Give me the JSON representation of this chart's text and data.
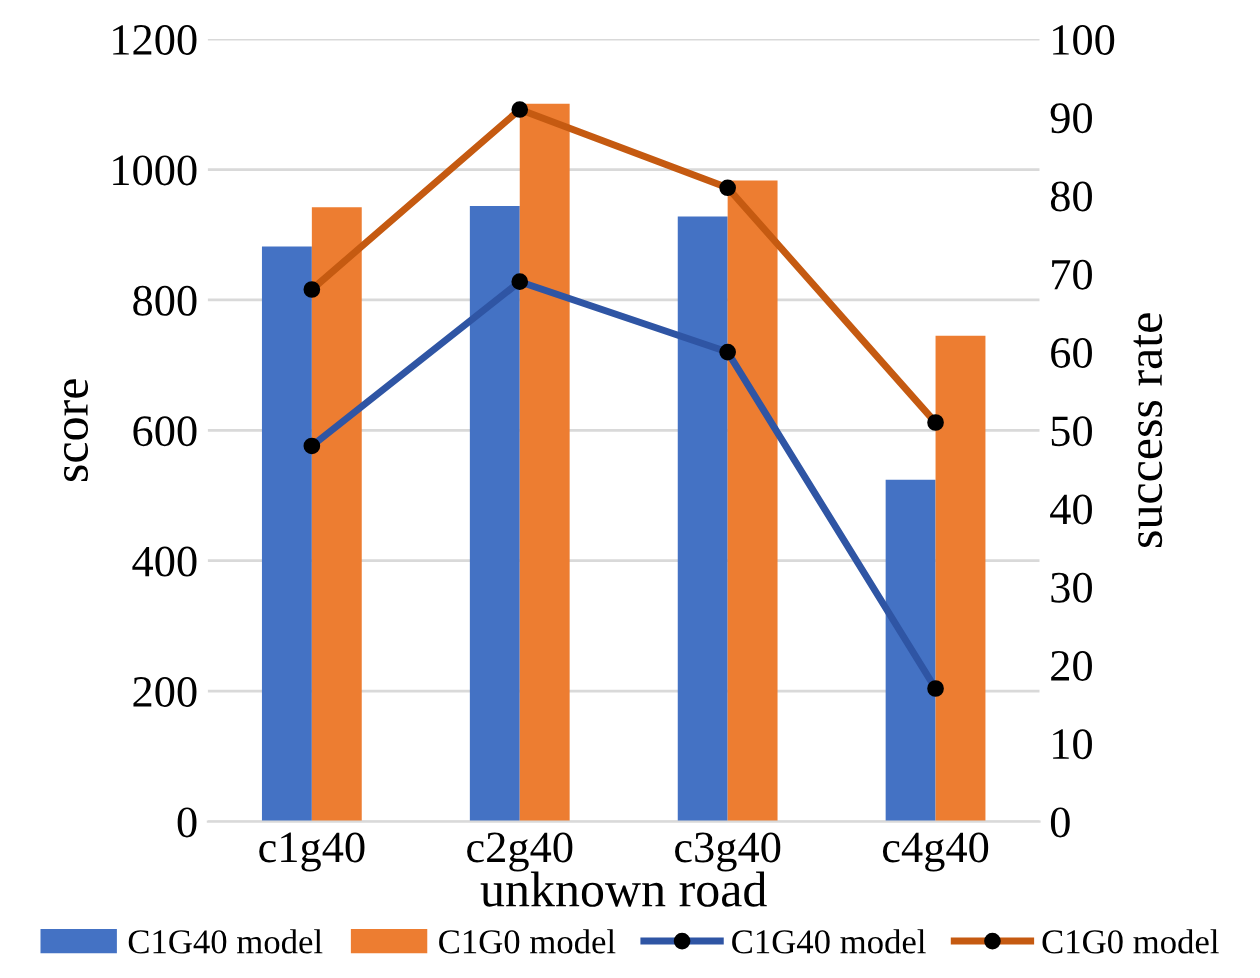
{
  "chart_data": {
    "type": "bar",
    "xlabel": "unknown road",
    "ylabel": "score",
    "y2label": "success rate",
    "categories": [
      "c1g40",
      "c2g40",
      "c3g40",
      "c4g40"
    ],
    "series": [
      {
        "name": "C1G40 model",
        "color": "#4472c4",
        "values": [
          882,
          944,
          928,
          524
        ]
      },
      {
        "name": "C1G0 model",
        "color": "#ed7d31",
        "values": [
          942,
          1101,
          983,
          745
        ]
      },
      {
        "name": "C1G40 model",
        "type": "line",
        "axis": "y2",
        "color": "#2f55a4",
        "marker": "circle",
        "values": [
          48,
          69,
          60,
          17
        ]
      },
      {
        "name": "C1G0 model",
        "type": "line",
        "axis": "y2",
        "color": "#c55a11",
        "marker": "circle",
        "values": [
          68,
          91,
          81,
          51
        ]
      }
    ],
    "ylim": [
      0,
      1200
    ],
    "yticks": [
      0,
      200,
      400,
      600,
      800,
      1000,
      1200
    ],
    "y2lim": [
      0,
      100
    ],
    "y2ticks": [
      0,
      10,
      20,
      30,
      40,
      50,
      60,
      70,
      80,
      90,
      100
    ],
    "grid": "y",
    "legend": "bottom"
  }
}
